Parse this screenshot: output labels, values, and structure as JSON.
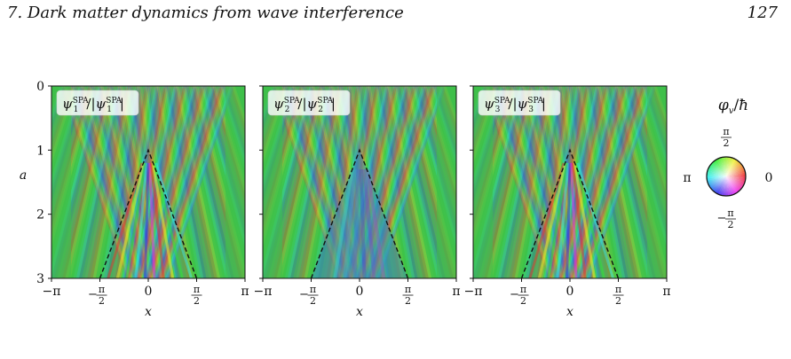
{
  "header": {
    "chapter_title": "7. Dark matter dynamics from wave interference",
    "page_number": "127"
  },
  "figure": {
    "panels": [
      {
        "label": "ψ₁ˢᴾᴬ/|ψ₁ˢᴾᴬ|",
        "sub": "1",
        "fringe_freq": 9.5,
        "central_fringes": true
      },
      {
        "label": "ψ₂ˢᴾᴬ/|ψ₂ˢᴾᴬ|",
        "sub": "2",
        "fringe_freq": 9.5,
        "central_fringes": false
      },
      {
        "label": "ψ₃ˢᴾᴬ/|ψ₃ˢᴾᴬ|",
        "sub": "3",
        "fringe_freq": 9.5,
        "central_fringes": true
      }
    ],
    "x_axis": {
      "label": "x",
      "range": [
        -3.14159,
        3.14159
      ],
      "ticks": [
        {
          "value": -3.14159,
          "label": "−π"
        },
        {
          "value": -1.5708,
          "label": "−π/2"
        },
        {
          "value": 0,
          "label": "0"
        },
        {
          "value": 1.5708,
          "label": "π/2"
        },
        {
          "value": 3.14159,
          "label": "π"
        }
      ]
    },
    "y_axis": {
      "label": "a",
      "range": [
        0,
        3
      ],
      "inverted": true,
      "ticks": [
        0,
        1,
        2,
        3
      ]
    },
    "caustic": {
      "apex": [
        0,
        1
      ],
      "base_left": [
        -1.5708,
        3
      ],
      "base_right": [
        1.5708,
        3
      ],
      "style": "dashed"
    },
    "colorwheel": {
      "title": "φ_v/ħ",
      "top_label": "π/2",
      "bottom_label": "−π/2",
      "left_label": "π",
      "right_label": "0"
    },
    "colors": {
      "green": "#3fbf4a",
      "magenta": "#d83aa8",
      "blue": "#3a5ccc",
      "orange": "#e8803a"
    }
  }
}
